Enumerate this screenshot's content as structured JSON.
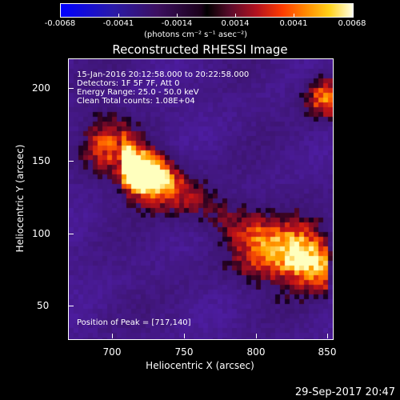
{
  "colorbar": {
    "labels": [
      "-0.0068",
      "-0.0041",
      "-0.0014",
      "0.0014",
      "0.0041",
      "0.0068"
    ],
    "units": "(photons cm⁻² s⁻¹ asec⁻²)"
  },
  "title": "Reconstructed RHESSI Image",
  "info": {
    "time_range": "15-Jan-2016 20:12:58.000 to 20:22:58.000",
    "detectors": "Detectors: 1F 5F 7F, Att 0",
    "energy_range": "Energy Range: 25.0 - 50.0 keV",
    "clean_counts": "Clean     Total counts: 1.08E+04",
    "peak": "Position of Peak = [717,140]"
  },
  "axes": {
    "xlabel": "Heliocentric X (arcsec)",
    "ylabel": "Heliocentric Y (arcsec)",
    "x_ticks": [
      "700",
      "750",
      "800",
      "850"
    ],
    "y_ticks": [
      "50",
      "100",
      "150",
      "200"
    ]
  },
  "datestamp": "29-Sep-2017 20:47"
}
